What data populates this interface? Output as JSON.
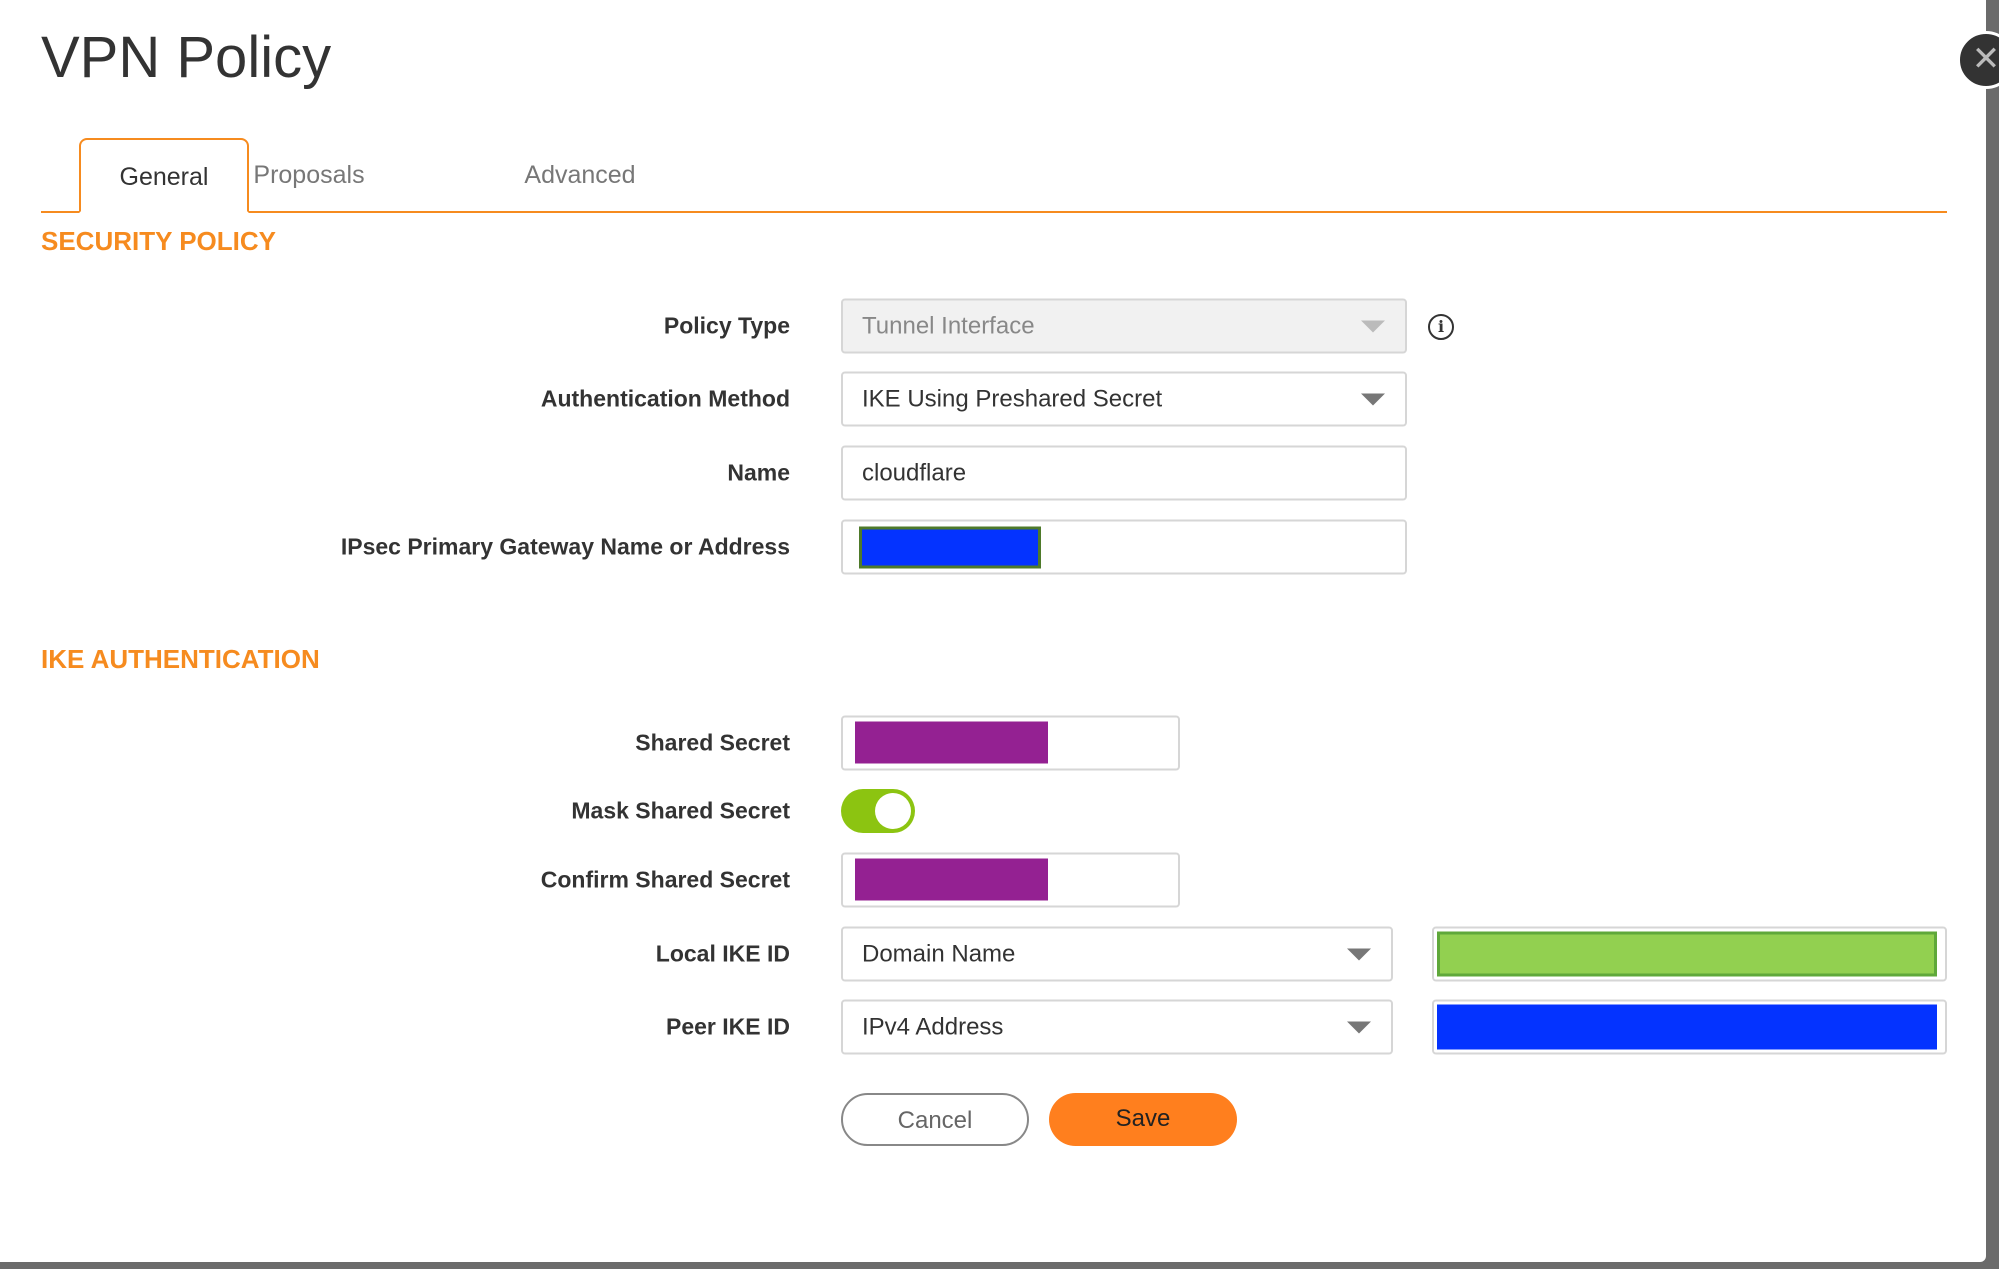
{
  "dialog": {
    "title": "VPN Policy",
    "close_icon": "close-icon"
  },
  "tabs": [
    {
      "label": "General",
      "active": true
    },
    {
      "label": "Proposals",
      "active": false
    },
    {
      "label": "Advanced",
      "active": false
    }
  ],
  "security_policy": {
    "heading": "SECURITY POLICY",
    "policy_type": {
      "label": "Policy Type",
      "value": "Tunnel Interface",
      "disabled": true
    },
    "auth_method": {
      "label": "Authentication Method",
      "value": "IKE Using Preshared Secret"
    },
    "name": {
      "label": "Name",
      "value": "cloudflare"
    },
    "gateway": {
      "label": "IPsec Primary Gateway Name or Address",
      "redaction_color": "#0433ff"
    }
  },
  "ike_auth": {
    "heading": "IKE AUTHENTICATION",
    "shared_secret": {
      "label": "Shared Secret",
      "redaction_color": "#942192"
    },
    "mask_shared_secret": {
      "label": "Mask Shared Secret",
      "on": true
    },
    "confirm_shared_secret": {
      "label": "Confirm Shared Secret",
      "redaction_color": "#942192"
    },
    "local_ike_id": {
      "label": "Local IKE ID",
      "value": "Domain Name",
      "redaction_color": "#92d050"
    },
    "peer_ike_id": {
      "label": "Peer IKE ID",
      "value": "IPv4 Address",
      "redaction_color": "#0433ff"
    }
  },
  "buttons": {
    "cancel": "Cancel",
    "save": "Save"
  },
  "colors": {
    "accent": "#f68b1f",
    "toggle_on": "#8cc411"
  }
}
